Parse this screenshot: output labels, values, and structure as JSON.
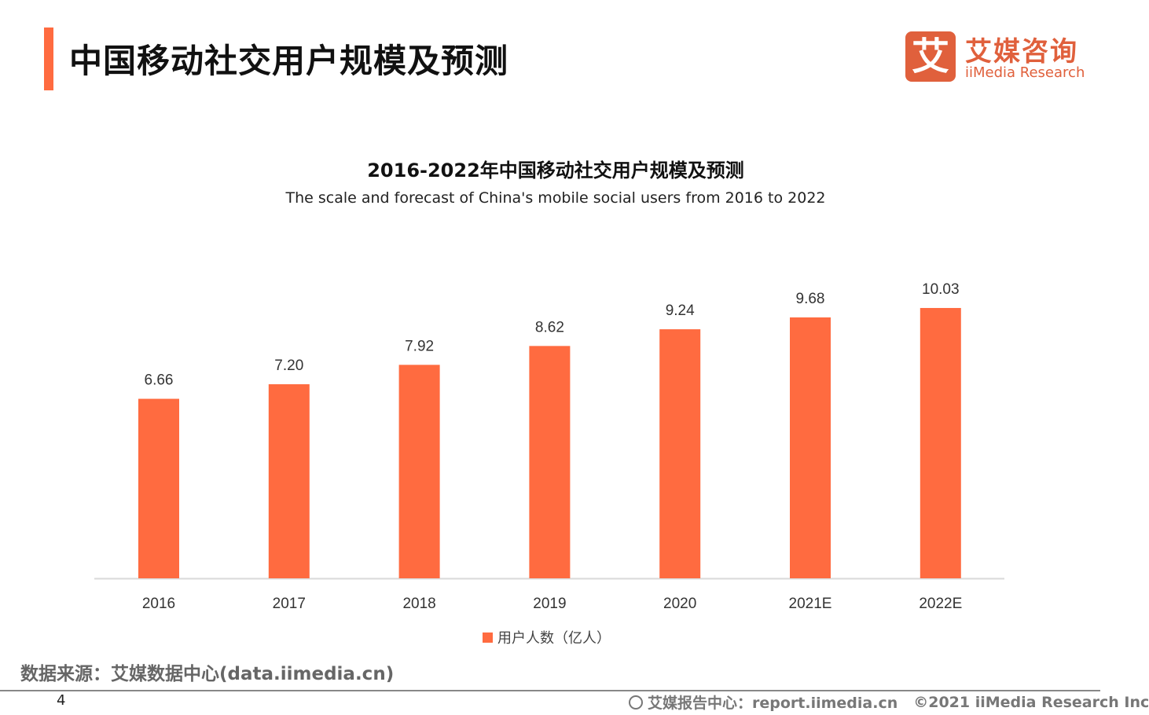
{
  "header": {
    "title": "中国移动社交用户规模及预测"
  },
  "logo": {
    "mark": "艾",
    "name_cn": "艾媒咨询",
    "name_en": "iiMedia Research"
  },
  "colors": {
    "accent": "#FF6B40",
    "logo": "#E0603C"
  },
  "chart_data": {
    "type": "bar",
    "title": "2016-2022年中国移动社交用户规模及预测",
    "subtitle": "The scale and forecast of China's mobile social users from 2016 to 2022",
    "categories": [
      "2016",
      "2017",
      "2018",
      "2019",
      "2020",
      "2021E",
      "2022E"
    ],
    "series": [
      {
        "name": "用户人数（亿人）",
        "values": [
          6.66,
          7.2,
          7.92,
          8.62,
          9.24,
          9.68,
          10.03
        ]
      }
    ],
    "data_labels": [
      "6.66",
      "7.20",
      "7.92",
      "8.62",
      "9.24",
      "9.68",
      "10.03"
    ],
    "ylim": [
      0,
      10.03
    ],
    "grid": false,
    "legend": "bottom"
  },
  "footer": {
    "source": "数据来源：艾媒数据中心(data.iimedia.cn)",
    "page_number": "4",
    "report": "艾媒报告中心：report.iimedia.cn",
    "copyright": "©2021  iiMedia Research  Inc"
  }
}
